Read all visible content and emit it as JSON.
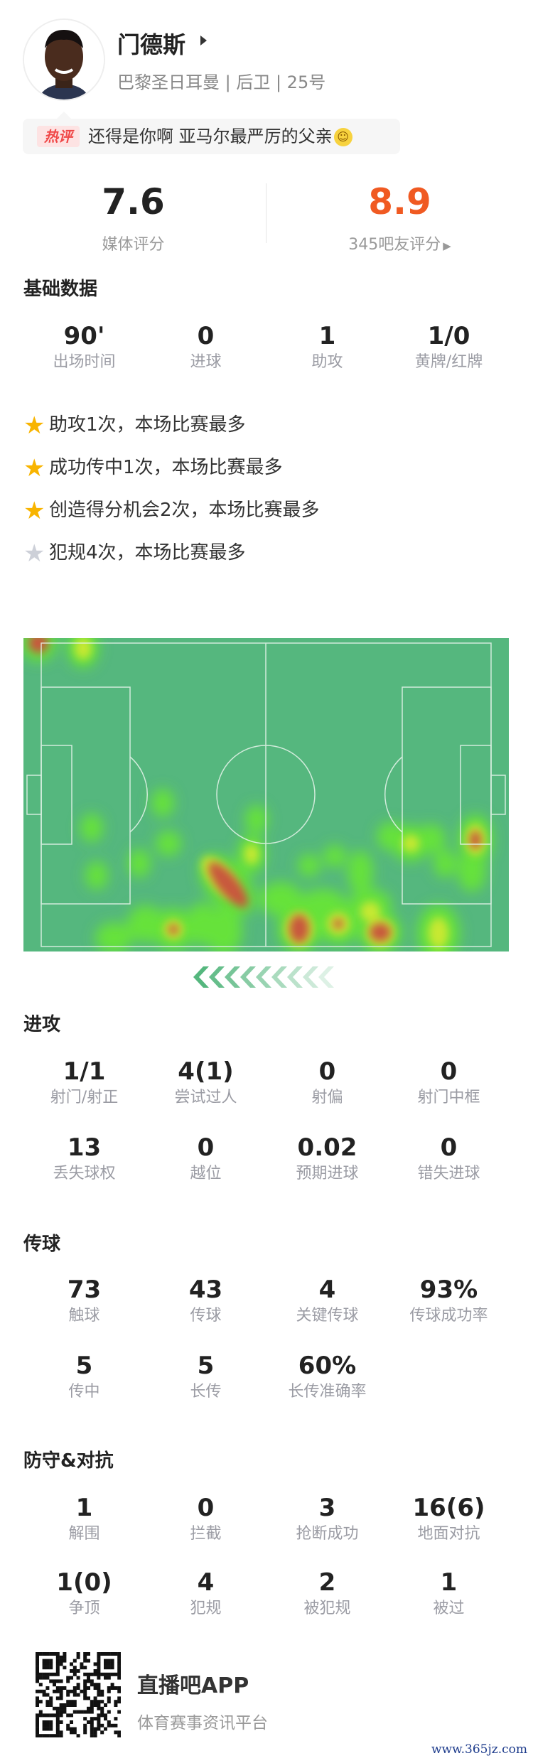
{
  "player": {
    "name": "门德斯",
    "subtitle": "巴黎圣日耳曼 | 后卫 | 25号",
    "avatar": "player-photo"
  },
  "hot_comment": {
    "badge": "热评",
    "text": "还得是你啊 亚马尔最严厉的父亲",
    "emoji": "smile-emoji"
  },
  "ratings": {
    "media_value": "7.6",
    "media_label": "媒体评分",
    "fans_value": "8.9",
    "fans_label": "345吧友评分",
    "fans_color": "#f05a22"
  },
  "basic": {
    "title": "基础数据",
    "stats": [
      {
        "value": "90'",
        "label": "出场时间"
      },
      {
        "value": "0",
        "label": "进球"
      },
      {
        "value": "1",
        "label": "助攻"
      },
      {
        "value": "1/0",
        "label": "黄牌/红牌"
      }
    ],
    "highlights": [
      {
        "text": "助攻1次，本场比赛最多",
        "icon": "gold-star"
      },
      {
        "text": "成功传中1次，本场比赛最多",
        "icon": "gold-star"
      },
      {
        "text": "创造得分机会2次，本场比赛最多",
        "icon": "gold-star"
      },
      {
        "text": "犯规4次，本场比赛最多",
        "icon": "grey-star"
      }
    ]
  },
  "heatmap": {
    "pitch_color": "#55b77e",
    "direction": "attacking-left"
  },
  "attack": {
    "title": "进攻",
    "stats": [
      {
        "value": "1/1",
        "label": "射门/射正"
      },
      {
        "value": "4(1)",
        "label": "尝试过人"
      },
      {
        "value": "0",
        "label": "射偏"
      },
      {
        "value": "0",
        "label": "射门中框"
      },
      {
        "value": "13",
        "label": "丢失球权"
      },
      {
        "value": "0",
        "label": "越位"
      },
      {
        "value": "0.02",
        "label": "预期进球"
      },
      {
        "value": "0",
        "label": "错失进球"
      }
    ]
  },
  "passing": {
    "title": "传球",
    "stats": [
      {
        "value": "73",
        "label": "触球"
      },
      {
        "value": "43",
        "label": "传球"
      },
      {
        "value": "4",
        "label": "关键传球"
      },
      {
        "value": "93%",
        "label": "传球成功率"
      },
      {
        "value": "5",
        "label": "传中"
      },
      {
        "value": "5",
        "label": "长传"
      },
      {
        "value": "60%",
        "label": "长传准确率"
      }
    ]
  },
  "defense": {
    "title": "防守&对抗",
    "stats": [
      {
        "value": "1",
        "label": "解围"
      },
      {
        "value": "0",
        "label": "拦截"
      },
      {
        "value": "3",
        "label": "抢断成功"
      },
      {
        "value": "16(6)",
        "label": "地面对抗"
      },
      {
        "value": "1(0)",
        "label": "争顶"
      },
      {
        "value": "4",
        "label": "犯规"
      },
      {
        "value": "2",
        "label": "被犯规"
      },
      {
        "value": "1",
        "label": "被过"
      }
    ]
  },
  "footer": {
    "app_name": "直播吧APP",
    "tagline": "体育赛事资讯平台",
    "watermark": "www.365jz.com"
  }
}
